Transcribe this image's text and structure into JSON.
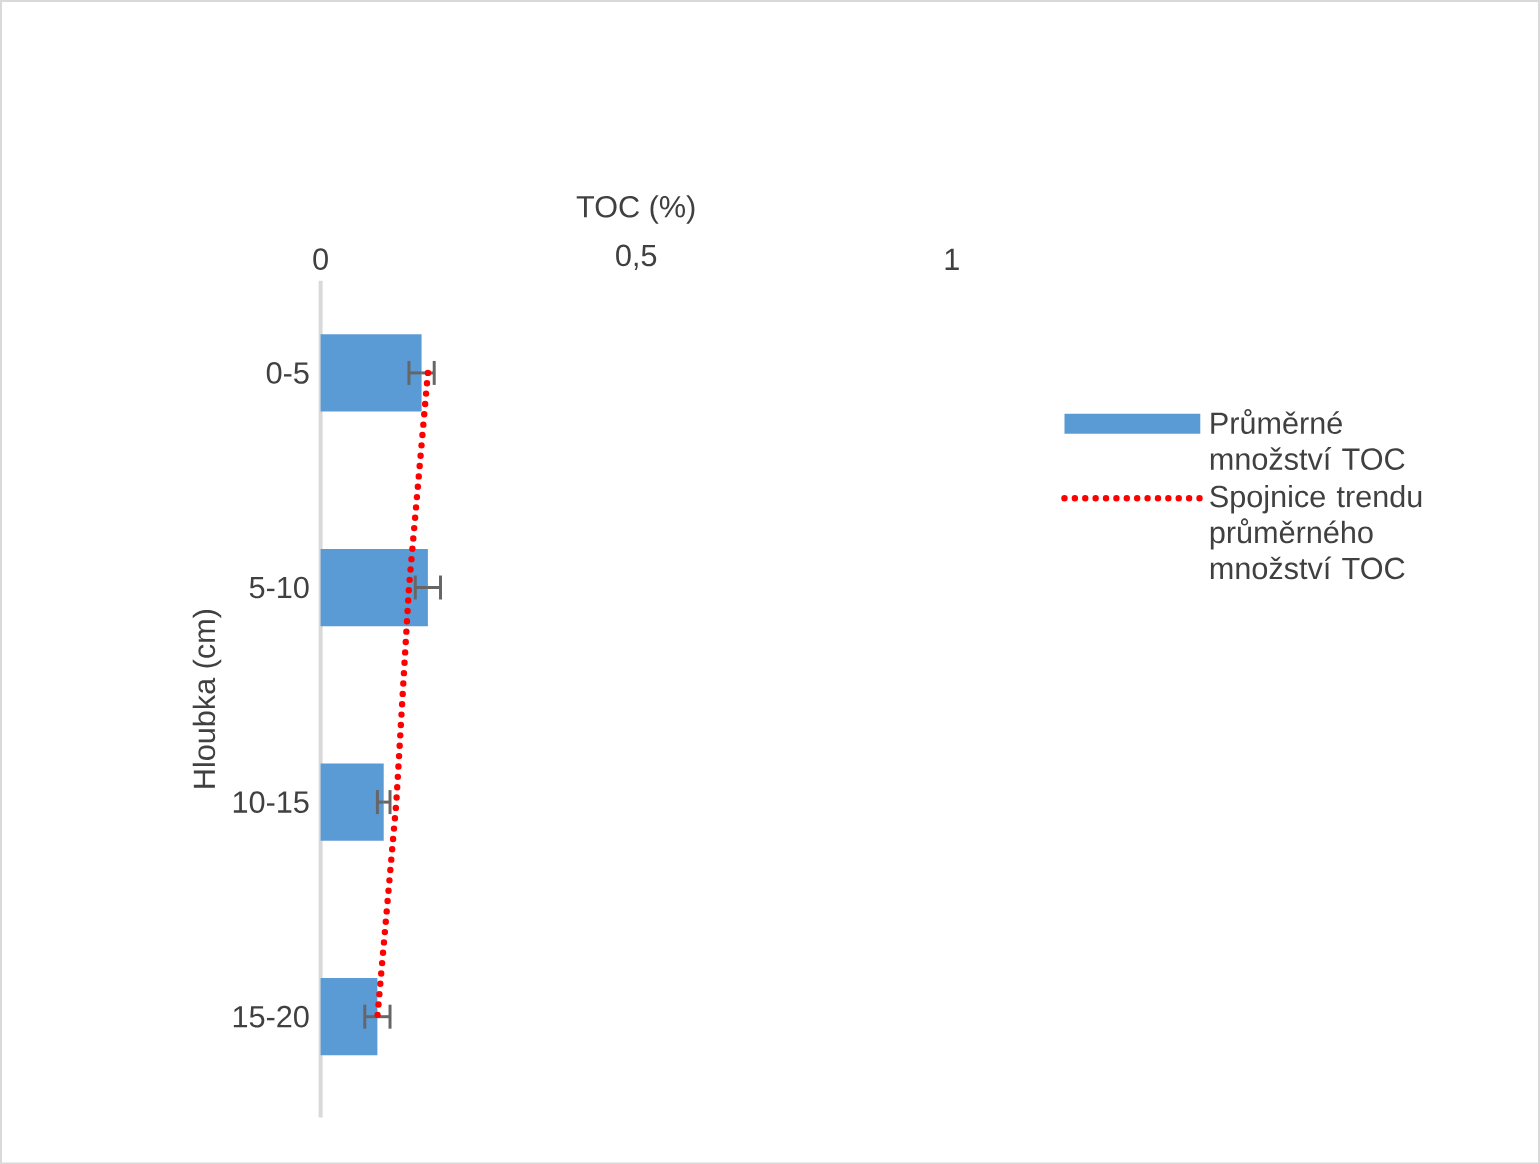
{
  "chart_data": {
    "type": "bar",
    "orientation": "horizontal",
    "xlabel": "TOC (%)",
    "ylabel": "Hloubka (cm)",
    "categories": [
      "0-5",
      "5-10",
      "10-15",
      "15-20"
    ],
    "xlim": [
      0,
      1
    ],
    "xticks": [
      0,
      {
        "value": 0.5,
        "label": "0,5"
      },
      1
    ],
    "legend": "right",
    "series": [
      {
        "name": "Průměrné množství TOC",
        "color": "#5b9bd5",
        "values": [
          0.16,
          0.17,
          0.1,
          0.09
        ],
        "errors": [
          0.02,
          0.02,
          0.01,
          0.02
        ]
      },
      {
        "name": "Spojnice trendu průměrného množství TOC",
        "type": "line",
        "line_style": "dotted",
        "color": "#ff0000",
        "values": [
          0.17,
          0.14,
          0.12,
          0.09
        ]
      }
    ]
  }
}
